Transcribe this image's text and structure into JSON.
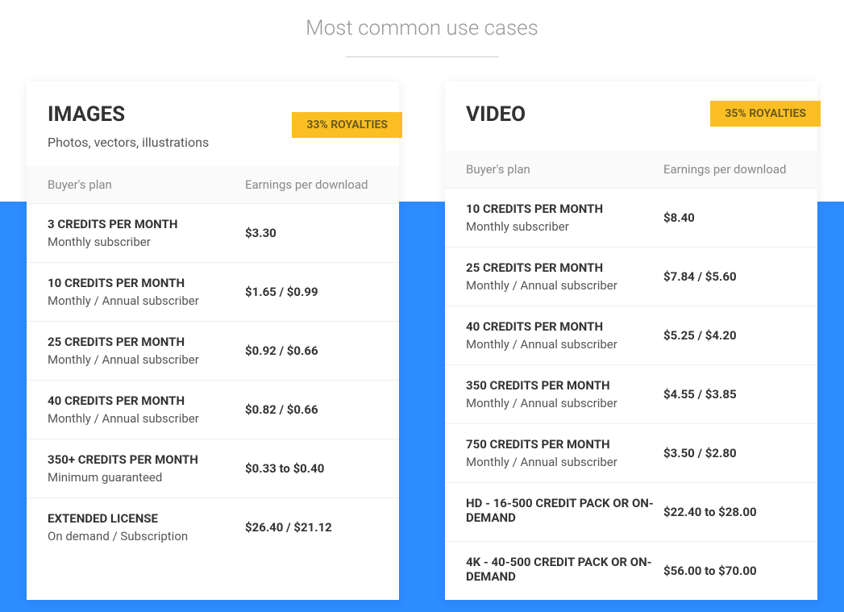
{
  "header": {
    "title": "Most common use cases"
  },
  "images_card": {
    "title": "IMAGES",
    "subtitle": "Photos, vectors, illustrations",
    "royalty_badge": "33% ROYALTIES",
    "table_headers": {
      "plan": "Buyer's plan",
      "earnings": "Earnings per download"
    },
    "rows": [
      {
        "plan": "3 CREDITS PER MONTH",
        "type": "Monthly subscriber",
        "earnings": "$3.30"
      },
      {
        "plan": "10 CREDITS PER MONTH",
        "type": "Monthly / Annual subscriber",
        "earnings": "$1.65 / $0.99"
      },
      {
        "plan": "25 CREDITS PER MONTH",
        "type": "Monthly / Annual subscriber",
        "earnings": "$0.92 / $0.66"
      },
      {
        "plan": "40 CREDITS PER MONTH",
        "type": "Monthly / Annual subscriber",
        "earnings": "$0.82 / $0.66"
      },
      {
        "plan": "350+ CREDITS PER MONTH",
        "type": "Minimum guaranteed",
        "earnings": "$0.33 to $0.40"
      },
      {
        "plan": "EXTENDED LICENSE",
        "type": "On demand / Subscription",
        "earnings": "$26.40 / $21.12"
      }
    ]
  },
  "video_card": {
    "title": "VIDEO",
    "royalty_badge": "35% ROYALTIES",
    "table_headers": {
      "plan": "Buyer's plan",
      "earnings": "Earnings per download"
    },
    "rows": [
      {
        "plan": "10 CREDITS PER MONTH",
        "type": "Monthly subscriber",
        "earnings": "$8.40"
      },
      {
        "plan": "25 CREDITS PER MONTH",
        "type": "Monthly / Annual subscriber",
        "earnings": "$7.84 / $5.60"
      },
      {
        "plan": "40 CREDITS PER MONTH",
        "type": "Monthly / Annual subscriber",
        "earnings": "$5.25 / $4.20"
      },
      {
        "plan": "350 CREDITS PER MONTH",
        "type": "Monthly / Annual subscriber",
        "earnings": "$4.55 / $3.85"
      },
      {
        "plan": "750 CREDITS PER MONTH",
        "type": "Monthly / Annual subscriber",
        "earnings": "$3.50 / $2.80"
      },
      {
        "plan": "HD - 16-500 CREDIT PACK OR ON-DEMAND",
        "type": "",
        "earnings": "$22.40 to $28.00"
      },
      {
        "plan": "4K - 40-500 CREDIT PACK OR ON-DEMAND",
        "type": "",
        "earnings": "$56.00 to $70.00"
      }
    ]
  },
  "colors": {
    "blue_band": "#2d8cff",
    "badge_bg": "#fbbf24",
    "badge_text": "#6b5a1c",
    "title_color": "#333333",
    "subtitle_color": "#555555",
    "header_gray": "#888888",
    "border": "#eeeeee"
  }
}
